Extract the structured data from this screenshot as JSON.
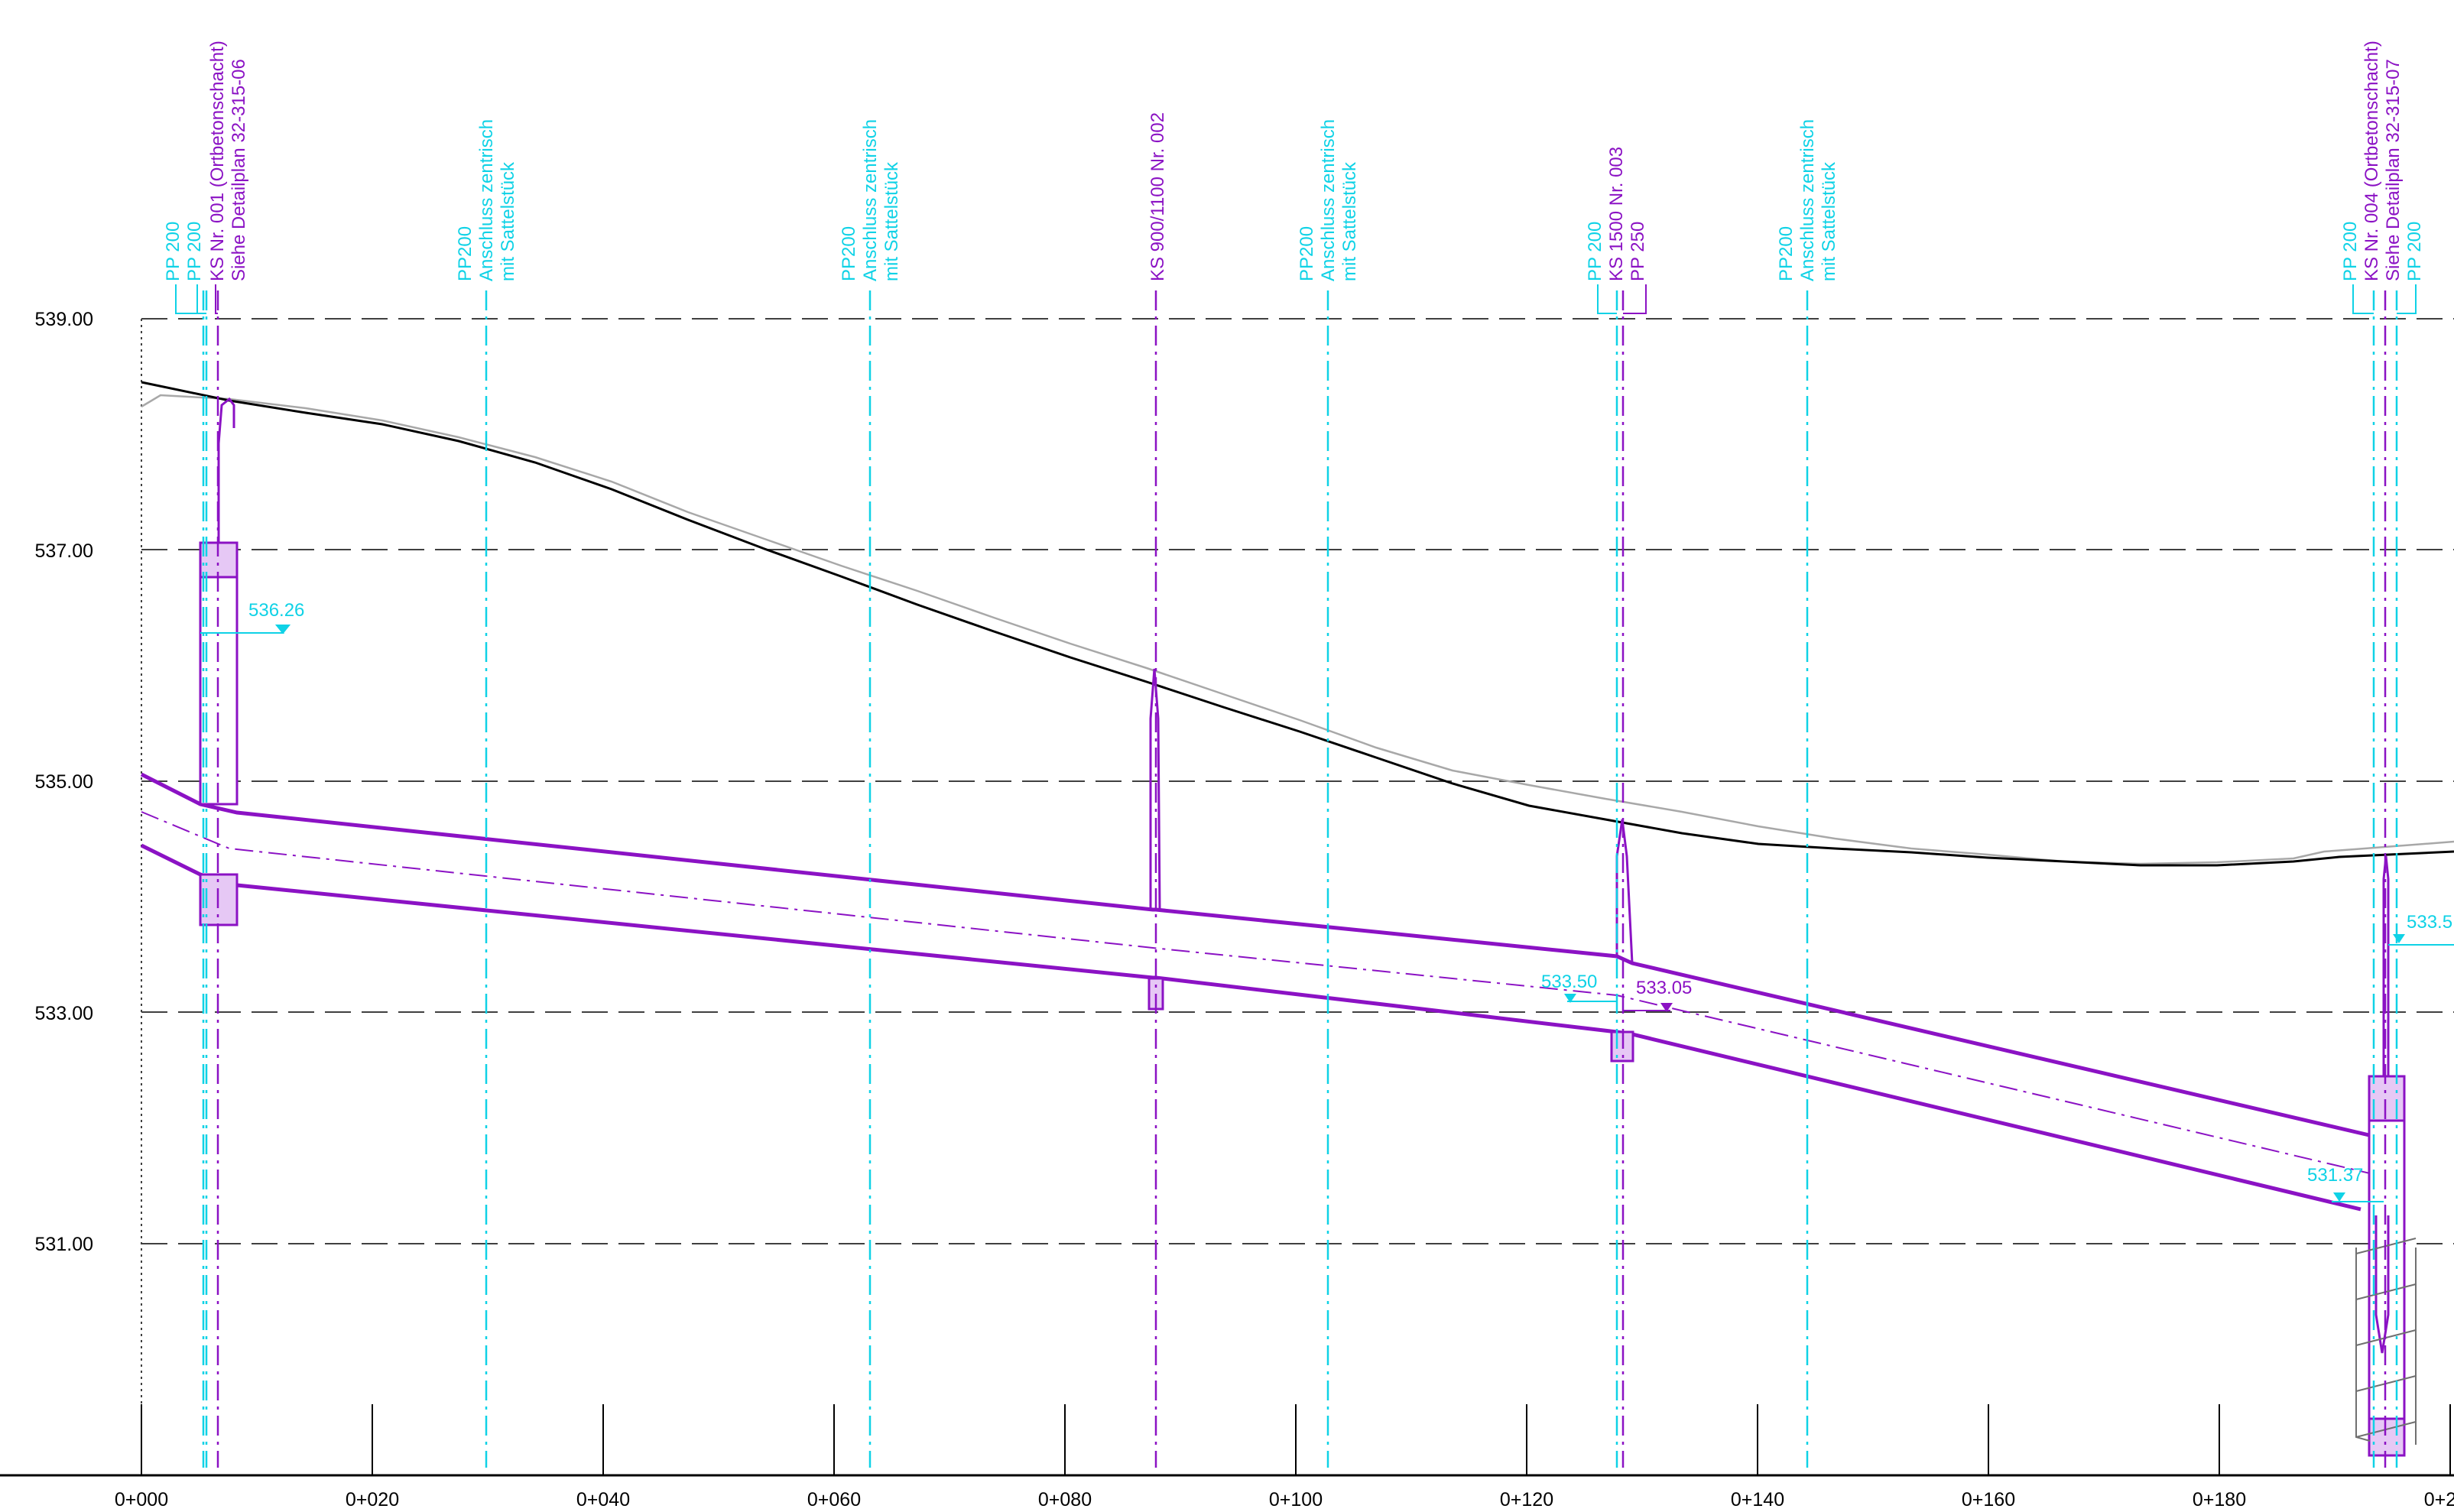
{
  "colors": {
    "background": "#ffffff",
    "pipe": "#8b12c4",
    "pipe_fill": "#e6c8f5",
    "manhole": "#8b12c4",
    "connection": "#0fd2e6",
    "terrain": "#000000",
    "terrain_existing": "#a8a8a8",
    "grid": "#404040",
    "axis_text": "#000000"
  },
  "elevation_ticks": [
    "539.00",
    "537.00",
    "535.00",
    "533.00",
    "531.00"
  ],
  "station_ticks": [
    "0+000",
    "0+020",
    "0+040",
    "0+060",
    "0+080",
    "0+100",
    "0+120",
    "0+140",
    "0+160",
    "0+180",
    "0+2"
  ],
  "vertical_labels": [
    {
      "id": "pp200-a",
      "text": "PP 200",
      "color": "connection"
    },
    {
      "id": "pp200-b",
      "text": "PP 200",
      "color": "connection"
    },
    {
      "id": "ks001-1",
      "text": "KS Nr. 001 (Ortbetonschacht)",
      "color": "manhole"
    },
    {
      "id": "ks001-2",
      "text": "Siehe Detailplan 32-315-06",
      "color": "manhole"
    },
    {
      "id": "conn1-1",
      "text": "PP200",
      "color": "connection"
    },
    {
      "id": "conn1-2",
      "text": "Anschluss zentrisch",
      "color": "connection"
    },
    {
      "id": "conn1-3",
      "text": "mit Sattelstück",
      "color": "connection"
    },
    {
      "id": "conn2-1",
      "text": "PP200",
      "color": "connection"
    },
    {
      "id": "conn2-2",
      "text": "Anschluss zentrisch",
      "color": "connection"
    },
    {
      "id": "conn2-3",
      "text": "mit Sattelstück",
      "color": "connection"
    },
    {
      "id": "ks002",
      "text": "KS 900/1100 Nr. 002",
      "color": "manhole"
    },
    {
      "id": "conn3-1",
      "text": "PP200",
      "color": "connection"
    },
    {
      "id": "conn3-2",
      "text": "Anschluss zentrisch",
      "color": "connection"
    },
    {
      "id": "conn3-3",
      "text": "mit Sattelstück",
      "color": "connection"
    },
    {
      "id": "pp200-c",
      "text": "PP 200",
      "color": "connection"
    },
    {
      "id": "ks003",
      "text": "KS 1500 Nr. 003",
      "color": "manhole"
    },
    {
      "id": "pp250",
      "text": "PP 250",
      "color": "manhole"
    },
    {
      "id": "conn4-1",
      "text": "PP200",
      "color": "connection"
    },
    {
      "id": "conn4-2",
      "text": "Anschluss zentrisch",
      "color": "connection"
    },
    {
      "id": "conn4-3",
      "text": "mit Sattelstück",
      "color": "connection"
    },
    {
      "id": "pp200-d",
      "text": "PP 200",
      "color": "connection"
    },
    {
      "id": "ks004-1",
      "text": "KS Nr. 004 (Ortbetonschacht)",
      "color": "manhole"
    },
    {
      "id": "ks004-2",
      "text": "Siehe Detailplan 32-315-07",
      "color": "manhole"
    },
    {
      "id": "pp200-e",
      "text": "PP 200",
      "color": "connection"
    }
  ],
  "level_annotations": [
    {
      "id": "lvl-536-26",
      "text": "536.26",
      "color": "connection"
    },
    {
      "id": "lvl-533-50",
      "text": "533.50",
      "color": "connection"
    },
    {
      "id": "lvl-533-05",
      "text": "533.05",
      "color": "manhole"
    },
    {
      "id": "lvl-531-37",
      "text": "531.37",
      "color": "connection"
    },
    {
      "id": "lvl-533-edge",
      "text": "533.5",
      "color": "connection"
    }
  ]
}
